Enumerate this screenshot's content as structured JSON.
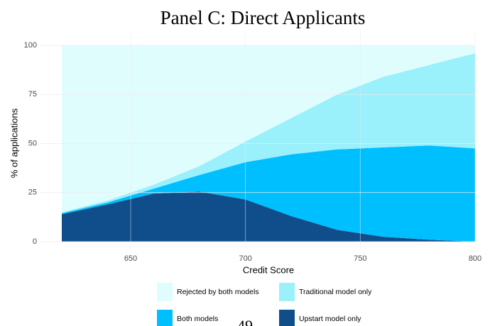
{
  "chart_data": {
    "type": "stacked-area",
    "title": "Panel C: Direct Applicants",
    "x_label": "Credit Score",
    "y_label": "% of applications",
    "x": [
      620,
      640,
      660,
      680,
      700,
      720,
      740,
      760,
      780,
      800
    ],
    "series": [
      {
        "name": "Upstart model only",
        "color": "#104e8b",
        "values": [
          14,
          19,
          24.5,
          25.5,
          21.5,
          13,
          6,
          2.5,
          1,
          0
        ]
      },
      {
        "name": "Both models",
        "color": "#00bfff",
        "values": [
          0.5,
          1,
          2.5,
          8.5,
          19,
          31.5,
          41,
          45.5,
          48,
          47.5
        ]
      },
      {
        "name": "Traditional model only",
        "color": "#9af0fb",
        "values": [
          0.5,
          1,
          2,
          4.5,
          10.5,
          18.5,
          28,
          36,
          41,
          48.5
        ]
      },
      {
        "name": "Rejected by both models",
        "color": "#e0fdfe",
        "values": [
          85,
          79,
          71,
          61.5,
          49,
          37,
          25,
          16,
          10,
          4
        ]
      }
    ],
    "xlim": [
      620,
      800
    ],
    "xticks": [
      650,
      700,
      750,
      800
    ],
    "ylim": [
      0,
      100
    ],
    "yticks": [
      0,
      25,
      50,
      75,
      100
    ],
    "grid": true
  },
  "page_number": "49"
}
